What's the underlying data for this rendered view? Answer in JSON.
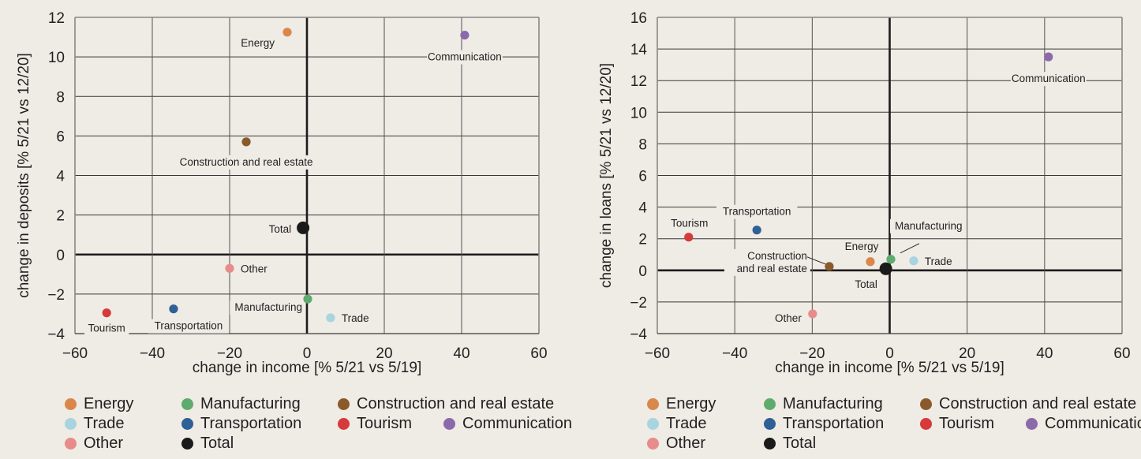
{
  "chart_data": [
    {
      "type": "scatter",
      "title": "",
      "xlabel": "change in income [% 5/21 vs 5/19]",
      "ylabel": "change in deposits [% 5/21 vs 12/20]",
      "xlim": [
        -60,
        60
      ],
      "ylim": [
        -4,
        12
      ],
      "xticks": [
        "−60",
        "−40",
        "−20",
        "0",
        "20",
        "40",
        "60"
      ],
      "xtick_values": [
        -60,
        -40,
        -20,
        0,
        20,
        40,
        60
      ],
      "yticks": [
        "−4",
        "−2",
        "0",
        "2",
        "4",
        "6",
        "8",
        "10",
        "12"
      ],
      "ytick_values": [
        -4,
        -2,
        0,
        2,
        4,
        6,
        8,
        10,
        12
      ],
      "grid": true,
      "points": [
        {
          "name": "Energy",
          "label": "Energy",
          "x": -5.1,
          "y": 11.25,
          "color": "#d9874a"
        },
        {
          "name": "Manufacturing",
          "label": "Manufacturing",
          "x": 0.2,
          "y": -2.25,
          "color": "#5fab6e"
        },
        {
          "name": "Construction and real estate",
          "label": "Construction and real estate",
          "x": -15.7,
          "y": 5.7,
          "color": "#8a5a2b"
        },
        {
          "name": "Trade",
          "label": "Trade",
          "x": 6.1,
          "y": -3.2,
          "color": "#a8d4e0"
        },
        {
          "name": "Transportation",
          "label": "Transportation",
          "x": -34.5,
          "y": -2.75,
          "color": "#2f6096"
        },
        {
          "name": "Tourism",
          "label": "Tourism",
          "x": -51.8,
          "y": -2.95,
          "color": "#d63a3a"
        },
        {
          "name": "Communication",
          "label": "Communication",
          "x": 40.8,
          "y": 11.1,
          "color": "#8a6aab"
        },
        {
          "name": "Other",
          "label": "Other",
          "x": -20.0,
          "y": -0.7,
          "color": "#e88b8b"
        },
        {
          "name": "Total",
          "label": "Total",
          "x": -1.0,
          "y": 1.35,
          "color": "#1a1a1a"
        }
      ]
    },
    {
      "type": "scatter",
      "title": "",
      "xlabel": "change in income [% 5/21 vs 5/19]",
      "ylabel": "change in loans [% 5/21 vs 12/20]",
      "xlim": [
        -60,
        60
      ],
      "ylim": [
        -4,
        16
      ],
      "xticks": [
        "−60",
        "−40",
        "−20",
        "0",
        "20",
        "40",
        "60"
      ],
      "xtick_values": [
        -60,
        -40,
        -20,
        0,
        20,
        40,
        60
      ],
      "yticks": [
        "−4",
        "−2",
        "0",
        "2",
        "4",
        "6",
        "8",
        "10",
        "12",
        "14",
        "16"
      ],
      "ytick_values": [
        -4,
        -2,
        0,
        2,
        4,
        6,
        8,
        10,
        12,
        14,
        16
      ],
      "grid": true,
      "points": [
        {
          "name": "Energy",
          "label": "Energy",
          "x": -5.0,
          "y": 0.55,
          "color": "#d9874a"
        },
        {
          "name": "Manufacturing",
          "label": "Manufacturing",
          "x": 0.3,
          "y": 0.7,
          "color": "#5fab6e"
        },
        {
          "name": "Construction and real estate",
          "label": "Construction\nand real estate",
          "x": -15.6,
          "y": 0.25,
          "color": "#8a5a2b"
        },
        {
          "name": "Trade",
          "label": "Trade",
          "x": 6.2,
          "y": 0.6,
          "color": "#a8d4e0"
        },
        {
          "name": "Transportation",
          "label": "Transportation",
          "x": -34.3,
          "y": 2.55,
          "color": "#2f6096"
        },
        {
          "name": "Tourism",
          "label": "Tourism",
          "x": -51.9,
          "y": 2.1,
          "color": "#d63a3a"
        },
        {
          "name": "Communication",
          "label": "Communication",
          "x": 41.0,
          "y": 13.5,
          "color": "#8a6aab"
        },
        {
          "name": "Other",
          "label": "Other",
          "x": -19.9,
          "y": -2.75,
          "color": "#e88b8b"
        },
        {
          "name": "Total",
          "label": "Total",
          "x": -1.0,
          "y": 0.1,
          "color": "#1a1a1a"
        }
      ]
    }
  ],
  "legend": {
    "items": [
      {
        "label": "Energy",
        "color": "#d9874a"
      },
      {
        "label": "Manufacturing",
        "color": "#5fab6e"
      },
      {
        "label": "Construction and real estate",
        "color": "#8a5a2b"
      },
      {
        "label": "Trade",
        "color": "#a8d4e0"
      },
      {
        "label": "Transportation",
        "color": "#2f6096"
      },
      {
        "label": "Tourism",
        "color": "#d63a3a"
      },
      {
        "label": "Communication",
        "color": "#8a6aab"
      },
      {
        "label": "Other",
        "color": "#e88b8b"
      },
      {
        "label": "Total",
        "color": "#1a1a1a"
      }
    ]
  }
}
